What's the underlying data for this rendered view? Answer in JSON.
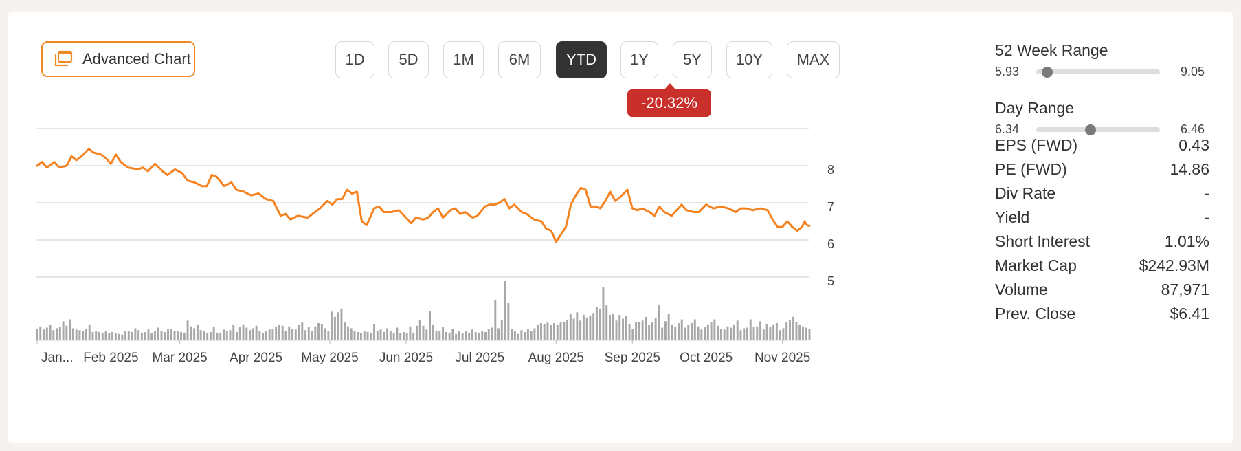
{
  "advanced_chart_label": "Advanced Chart",
  "ranges": [
    "1D",
    "5D",
    "1M",
    "6M",
    "YTD",
    "1Y",
    "5Y",
    "10Y",
    "MAX"
  ],
  "active_range": "YTD",
  "change_badge": "-20.32%",
  "colors": {
    "line": "#f5811f",
    "volume": "#a8a8a8",
    "badge": "#c9302c",
    "accent": "#f08a24",
    "active_button": "#333333"
  },
  "week52": {
    "title": "52 Week Range",
    "low": "5.93",
    "high": "9.05",
    "position": 0.09
  },
  "day_range": {
    "title": "Day Range",
    "low": "6.34",
    "high": "6.46",
    "position": 0.44
  },
  "stats": [
    {
      "label": "EPS (FWD)",
      "value": "0.43"
    },
    {
      "label": "PE (FWD)",
      "value": "14.86"
    },
    {
      "label": "Div Rate",
      "value": "-"
    },
    {
      "label": "Yield",
      "value": "-"
    },
    {
      "label": "Short Interest",
      "value": "1.01%"
    },
    {
      "label": "Market Cap",
      "value": "$242.93M"
    },
    {
      "label": "Volume",
      "value": "87,971"
    },
    {
      "label": "Prev. Close",
      "value": "$6.41"
    }
  ],
  "chart_data": {
    "type": "line",
    "x_range": [
      "2025-01-02",
      "2025-11-12"
    ],
    "ylim": [
      4.5,
      9.0
    ],
    "y_ticks": [
      8,
      7,
      6,
      5
    ],
    "grid": true,
    "x_ticks": [
      {
        "date": "2025-01-02",
        "label": "Jan..."
      },
      {
        "date": "2025-02-01",
        "label": "Feb 2025"
      },
      {
        "date": "2025-03-01",
        "label": "Mar 2025"
      },
      {
        "date": "2025-04-01",
        "label": "Apr 2025"
      },
      {
        "date": "2025-05-01",
        "label": "May 2025"
      },
      {
        "date": "2025-06-01",
        "label": "Jun 2025"
      },
      {
        "date": "2025-07-01",
        "label": "Jul 2025"
      },
      {
        "date": "2025-08-01",
        "label": "Aug 2025"
      },
      {
        "date": "2025-09-01",
        "label": "Sep 2025"
      },
      {
        "date": "2025-10-01",
        "label": "Oct 2025"
      },
      {
        "date": "2025-11-01",
        "label": "Nov 2025"
      }
    ],
    "price": [
      [
        "2025-01-02",
        8.0
      ],
      [
        "2025-01-04",
        8.1
      ],
      [
        "2025-01-06",
        7.95
      ],
      [
        "2025-01-09",
        8.1
      ],
      [
        "2025-01-11",
        7.95
      ],
      [
        "2025-01-14",
        8.0
      ],
      [
        "2025-01-16",
        8.25
      ],
      [
        "2025-01-18",
        8.15
      ],
      [
        "2025-01-20",
        8.25
      ],
      [
        "2025-01-23",
        8.45
      ],
      [
        "2025-01-25",
        8.35
      ],
      [
        "2025-01-28",
        8.3
      ],
      [
        "2025-01-30",
        8.2
      ],
      [
        "2025-02-01",
        8.05
      ],
      [
        "2025-02-03",
        8.3
      ],
      [
        "2025-02-05",
        8.1
      ],
      [
        "2025-02-08",
        7.95
      ],
      [
        "2025-02-12",
        7.9
      ],
      [
        "2025-02-14",
        7.95
      ],
      [
        "2025-02-16",
        7.85
      ],
      [
        "2025-02-19",
        8.05
      ],
      [
        "2025-02-22",
        7.85
      ],
      [
        "2025-02-24",
        7.75
      ],
      [
        "2025-02-27",
        7.9
      ],
      [
        "2025-03-02",
        7.8
      ],
      [
        "2025-03-04",
        7.6
      ],
      [
        "2025-03-07",
        7.55
      ],
      [
        "2025-03-10",
        7.45
      ],
      [
        "2025-03-12",
        7.45
      ],
      [
        "2025-03-14",
        7.75
      ],
      [
        "2025-03-16",
        7.7
      ],
      [
        "2025-03-19",
        7.45
      ],
      [
        "2025-03-22",
        7.55
      ],
      [
        "2025-03-24",
        7.35
      ],
      [
        "2025-03-27",
        7.3
      ],
      [
        "2025-03-30",
        7.2
      ],
      [
        "2025-04-02",
        7.25
      ],
      [
        "2025-04-05",
        7.1
      ],
      [
        "2025-04-08",
        7.05
      ],
      [
        "2025-04-11",
        6.65
      ],
      [
        "2025-04-13",
        6.7
      ],
      [
        "2025-04-15",
        6.55
      ],
      [
        "2025-04-18",
        6.65
      ],
      [
        "2025-04-22",
        6.6
      ],
      [
        "2025-04-24",
        6.7
      ],
      [
        "2025-04-27",
        6.85
      ],
      [
        "2025-04-30",
        7.05
      ],
      [
        "2025-05-02",
        6.95
      ],
      [
        "2025-05-04",
        7.1
      ],
      [
        "2025-05-06",
        7.1
      ],
      [
        "2025-05-08",
        7.35
      ],
      [
        "2025-05-10",
        7.25
      ],
      [
        "2025-05-12",
        7.3
      ],
      [
        "2025-05-14",
        6.5
      ],
      [
        "2025-05-16",
        6.4
      ],
      [
        "2025-05-19",
        6.85
      ],
      [
        "2025-05-21",
        6.9
      ],
      [
        "2025-05-23",
        6.75
      ],
      [
        "2025-05-26",
        6.75
      ],
      [
        "2025-05-29",
        6.8
      ],
      [
        "2025-06-01",
        6.6
      ],
      [
        "2025-06-03",
        6.45
      ],
      [
        "2025-06-05",
        6.6
      ],
      [
        "2025-06-08",
        6.55
      ],
      [
        "2025-06-10",
        6.6
      ],
      [
        "2025-06-12",
        6.75
      ],
      [
        "2025-06-14",
        6.85
      ],
      [
        "2025-06-16",
        6.6
      ],
      [
        "2025-06-19",
        6.8
      ],
      [
        "2025-06-21",
        6.85
      ],
      [
        "2025-06-23",
        6.7
      ],
      [
        "2025-06-25",
        6.75
      ],
      [
        "2025-06-28",
        6.6
      ],
      [
        "2025-06-30",
        6.65
      ],
      [
        "2025-07-03",
        6.9
      ],
      [
        "2025-07-05",
        6.95
      ],
      [
        "2025-07-07",
        6.95
      ],
      [
        "2025-07-09",
        7.0
      ],
      [
        "2025-07-11",
        7.1
      ],
      [
        "2025-07-13",
        6.85
      ],
      [
        "2025-07-15",
        6.95
      ],
      [
        "2025-07-18",
        6.75
      ],
      [
        "2025-07-20",
        6.7
      ],
      [
        "2025-07-23",
        6.55
      ],
      [
        "2025-07-26",
        6.5
      ],
      [
        "2025-07-28",
        6.3
      ],
      [
        "2025-07-30",
        6.25
      ],
      [
        "2025-08-01",
        5.95
      ],
      [
        "2025-08-03",
        6.15
      ],
      [
        "2025-08-05",
        6.35
      ],
      [
        "2025-08-07",
        6.95
      ],
      [
        "2025-08-09",
        7.2
      ],
      [
        "2025-08-11",
        7.4
      ],
      [
        "2025-08-13",
        7.35
      ],
      [
        "2025-08-15",
        6.9
      ],
      [
        "2025-08-17",
        6.9
      ],
      [
        "2025-08-19",
        6.85
      ],
      [
        "2025-08-21",
        7.05
      ],
      [
        "2025-08-23",
        7.3
      ],
      [
        "2025-08-25",
        7.05
      ],
      [
        "2025-08-27",
        7.15
      ],
      [
        "2025-08-30",
        7.35
      ],
      [
        "2025-09-01",
        6.85
      ],
      [
        "2025-09-03",
        6.8
      ],
      [
        "2025-09-05",
        6.85
      ],
      [
        "2025-09-08",
        6.75
      ],
      [
        "2025-09-10",
        6.65
      ],
      [
        "2025-09-12",
        6.9
      ],
      [
        "2025-09-14",
        6.75
      ],
      [
        "2025-09-17",
        6.65
      ],
      [
        "2025-09-19",
        6.8
      ],
      [
        "2025-09-21",
        6.95
      ],
      [
        "2025-09-23",
        6.8
      ],
      [
        "2025-09-26",
        6.75
      ],
      [
        "2025-09-28",
        6.75
      ],
      [
        "2025-10-01",
        6.95
      ],
      [
        "2025-10-04",
        6.85
      ],
      [
        "2025-10-07",
        6.9
      ],
      [
        "2025-10-10",
        6.85
      ],
      [
        "2025-10-13",
        6.75
      ],
      [
        "2025-10-15",
        6.85
      ],
      [
        "2025-10-17",
        6.85
      ],
      [
        "2025-10-20",
        6.8
      ],
      [
        "2025-10-23",
        6.85
      ],
      [
        "2025-10-26",
        6.8
      ],
      [
        "2025-10-28",
        6.55
      ],
      [
        "2025-10-30",
        6.35
      ],
      [
        "2025-11-01",
        6.35
      ],
      [
        "2025-11-03",
        6.5
      ],
      [
        "2025-11-05",
        6.35
      ],
      [
        "2025-11-07",
        6.25
      ],
      [
        "2025-11-09",
        6.35
      ],
      [
        "2025-11-10",
        6.5
      ],
      [
        "2025-11-11",
        6.4
      ],
      [
        "2025-11-12",
        6.38
      ]
    ],
    "volume": [
      18,
      22,
      17,
      20,
      24,
      16,
      19,
      21,
      30,
      23,
      33,
      19,
      17,
      16,
      14,
      18,
      25,
      13,
      15,
      13,
      12,
      14,
      11,
      13,
      12,
      10,
      9,
      15,
      14,
      13,
      19,
      16,
      12,
      13,
      17,
      11,
      14,
      20,
      15,
      13,
      17,
      18,
      15,
      14,
      13,
      12,
      31,
      22,
      19,
      25,
      16,
      14,
      12,
      13,
      21,
      12,
      11,
      17,
      14,
      16,
      25,
      13,
      21,
      25,
      20,
      16,
      19,
      23,
      15,
      12,
      14,
      17,
      18,
      21,
      24,
      23,
      15,
      22,
      18,
      17,
      24,
      28,
      16,
      21,
      14,
      22,
      27,
      26,
      19,
      15,
      45,
      37,
      44,
      50,
      28,
      22,
      19,
      15,
      13,
      12,
      14,
      13,
      12,
      26,
      15,
      17,
      13,
      19,
      14,
      12,
      20,
      11,
      13,
      12,
      22,
      11,
      23,
      32,
      23,
      17,
      46,
      25,
      15,
      15,
      21,
      13,
      12,
      18,
      10,
      14,
      11,
      15,
      12,
      17,
      13,
      12,
      15,
      13,
      18,
      20,
      64,
      19,
      32,
      93,
      59,
      18,
      15,
      10,
      16,
      13,
      18,
      15,
      19,
      25,
      27,
      26,
      28,
      25,
      27,
      25,
      28,
      29,
      32,
      42,
      34,
      44,
      31,
      40,
      36,
      39,
      43,
      52,
      50,
      84,
      55,
      40,
      41,
      31,
      40,
      34,
      39,
      26,
      18,
      29,
      29,
      31,
      37,
      24,
      28,
      35,
      55,
      20,
      30,
      42,
      25,
      21,
      27,
      33,
      20,
      24,
      27,
      33,
      22,
      17,
      21,
      25,
      29,
      33,
      23,
      18,
      17,
      22,
      20,
      25,
      31,
      16,
      19,
      20,
      33,
      21,
      22,
      30,
      17,
      26,
      21,
      25,
      27,
      16,
      19,
      28,
      32,
      37,
      29,
      25,
      22,
      20,
      18
    ]
  }
}
